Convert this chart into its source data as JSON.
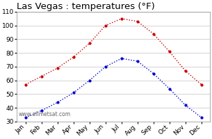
{
  "title": "Las Vegas : temperatures (°F)",
  "months": [
    "Jan",
    "Feb",
    "Mar",
    "Apr",
    "May",
    "Jun",
    "Jul",
    "Aug",
    "Sep",
    "Oct",
    "Nov",
    "Dec"
  ],
  "high_temps": [
    57,
    63,
    69,
    77,
    87,
    100,
    105,
    103,
    94,
    81,
    67,
    57
  ],
  "low_temps": [
    33,
    38,
    44,
    51,
    60,
    70,
    76,
    74,
    65,
    54,
    42,
    33
  ],
  "high_color": "#cc0000",
  "low_color": "#0000cc",
  "bg_color": "#ffffff",
  "plot_bg_color": "#ffffff",
  "grid_color": "#cccccc",
  "ylim": [
    30,
    110
  ],
  "yticks": [
    30,
    40,
    50,
    60,
    70,
    80,
    90,
    100,
    110
  ],
  "watermark": "www.allmetsat.com",
  "title_fontsize": 9.5,
  "tick_fontsize": 6.5,
  "watermark_fontsize": 5.5,
  "linewidth": 1.0,
  "markersize": 2.5
}
